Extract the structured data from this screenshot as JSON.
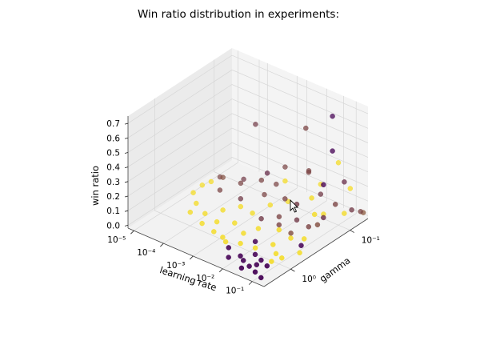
{
  "chart_data": {
    "type": "scatter",
    "projection": "3d",
    "title": "Win ratio distribution in experiments:",
    "xlabel": "learning rate",
    "ylabel": "gamma",
    "zlabel": "win ratio",
    "x_scale": "log",
    "y_scale": "log",
    "x_ticks": [
      {
        "value": -5,
        "label": "10⁻⁵"
      },
      {
        "value": -4,
        "label": "10⁻⁴"
      },
      {
        "value": -3,
        "label": "10⁻³"
      },
      {
        "value": -2,
        "label": "10⁻²"
      },
      {
        "value": -1,
        "label": "10⁻¹"
      }
    ],
    "y_ticks": [
      {
        "value": 0,
        "label": "10⁰"
      },
      {
        "value": -1,
        "label": "10⁻¹"
      }
    ],
    "z_ticks": [
      {
        "value": 0.0,
        "label": "0.0"
      },
      {
        "value": 0.1,
        "label": "0.1"
      },
      {
        "value": 0.2,
        "label": "0.2"
      },
      {
        "value": 0.3,
        "label": "0.3"
      },
      {
        "value": 0.4,
        "label": "0.4"
      },
      {
        "value": 0.5,
        "label": "0.5"
      },
      {
        "value": 0.6,
        "label": "0.6"
      },
      {
        "value": 0.7,
        "label": "0.7"
      }
    ],
    "xlim_log10": [
      -5.2,
      -0.6
    ],
    "ylim_log10": [
      0.45,
      -1.3
    ],
    "zlim": [
      -0.02,
      0.75
    ],
    "color_scale": {
      "low": "#440154",
      "high": "#fde725"
    },
    "points_description": "x = log10(learning rate), y = log10(gamma), z = win ratio, c = 0 (dark) .. 1 (yellow)",
    "points": [
      {
        "x": -3.7,
        "y": -0.95,
        "z": 0.45,
        "c": 0.25
      },
      {
        "x": -2.1,
        "y": -1.0,
        "z": 0.55,
        "c": 0.3
      },
      {
        "x": -1.7,
        "y": -1.25,
        "z": 0.6,
        "c": 0.0
      },
      {
        "x": -1.3,
        "y": -1.05,
        "z": 0.45,
        "c": 0.0
      },
      {
        "x": -2.8,
        "y": -0.7,
        "z": 0.26,
        "c": 0.2
      },
      {
        "x": -1.8,
        "y": -0.9,
        "z": 0.3,
        "c": 0.3
      },
      {
        "x": -1.2,
        "y": -0.85,
        "z": 0.28,
        "c": 0.0
      },
      {
        "x": -1.4,
        "y": -1.2,
        "z": 0.32,
        "c": 0.95
      },
      {
        "x": -1.0,
        "y": -1.1,
        "z": 0.25,
        "c": 0.2
      },
      {
        "x": -0.9,
        "y": -1.15,
        "z": 0.2,
        "c": 0.95
      },
      {
        "x": -2.0,
        "y": -0.6,
        "z": 0.18,
        "c": 0.3
      },
      {
        "x": -1.5,
        "y": -0.55,
        "z": 0.2,
        "c": 0.25
      },
      {
        "x": -3.2,
        "y": -0.8,
        "z": 0.15,
        "c": 0.3
      },
      {
        "x": -2.6,
        "y": -0.9,
        "z": 0.17,
        "c": 0.95
      },
      {
        "x": -2.9,
        "y": -1.05,
        "z": 0.2,
        "c": 0.3
      },
      {
        "x": -1.0,
        "y": -0.6,
        "z": 0.16,
        "c": 0.95
      },
      {
        "x": -0.8,
        "y": -0.55,
        "z": 0.12,
        "c": 0.35
      },
      {
        "x": -1.1,
        "y": -0.8,
        "z": 0.1,
        "c": 0.95
      },
      {
        "x": -0.9,
        "y": -0.7,
        "z": 0.12,
        "c": 0.2
      },
      {
        "x": -0.7,
        "y": -0.95,
        "z": 0.1,
        "c": 0.95
      },
      {
        "x": -0.75,
        "y": -1.1,
        "z": 0.08,
        "c": 0.25
      },
      {
        "x": -0.65,
        "y": -1.2,
        "z": 0.05,
        "c": 0.3
      },
      {
        "x": -0.7,
        "y": -1.27,
        "z": 0.02,
        "c": 0.4
      },
      {
        "x": -4.6,
        "y": -0.8,
        "z": 0.05,
        "c": 0.3
      },
      {
        "x": -4.5,
        "y": -0.6,
        "z": 0.08,
        "c": 0.95
      },
      {
        "x": -4.3,
        "y": -0.7,
        "z": 0.1,
        "c": 0.35
      },
      {
        "x": -4.1,
        "y": -0.55,
        "z": 0.07,
        "c": 0.3
      },
      {
        "x": -4.0,
        "y": -0.9,
        "z": 0.06,
        "c": 0.25
      },
      {
        "x": -3.8,
        "y": -0.75,
        "z": 0.09,
        "c": 0.3
      },
      {
        "x": -4.7,
        "y": -0.4,
        "z": 0.04,
        "c": 0.95
      },
      {
        "x": -4.4,
        "y": -0.3,
        "z": 0.02,
        "c": 0.95
      },
      {
        "x": -4.2,
        "y": -0.1,
        "z": 0.03,
        "c": 0.95
      },
      {
        "x": -3.9,
        "y": -0.2,
        "z": 0.02,
        "c": 0.95
      },
      {
        "x": -3.6,
        "y": -0.35,
        "z": 0.03,
        "c": 0.95
      },
      {
        "x": -3.4,
        "y": -0.15,
        "z": 0.02,
        "c": 0.95
      },
      {
        "x": -3.2,
        "y": 0.0,
        "z": 0.01,
        "c": 0.95
      },
      {
        "x": -3.0,
        "y": -0.25,
        "z": 0.02,
        "c": 0.95
      },
      {
        "x": -2.8,
        "y": 0.05,
        "z": 0.02,
        "c": 0.95
      },
      {
        "x": -3.5,
        "y": -0.6,
        "z": 0.05,
        "c": 0.25
      },
      {
        "x": -3.3,
        "y": -0.5,
        "z": 0.04,
        "c": 0.95
      },
      {
        "x": -3.1,
        "y": -0.8,
        "z": 0.06,
        "c": 0.3
      },
      {
        "x": -2.9,
        "y": -0.5,
        "z": 0.03,
        "c": 0.95
      },
      {
        "x": -2.7,
        "y": -0.7,
        "z": 0.05,
        "c": 0.95
      },
      {
        "x": -2.5,
        "y": -0.45,
        "z": 0.04,
        "c": 0.25
      },
      {
        "x": -2.4,
        "y": -0.85,
        "z": 0.06,
        "c": 0.95
      },
      {
        "x": -2.3,
        "y": -0.3,
        "z": 0.03,
        "c": 0.95
      },
      {
        "x": -2.2,
        "y": -0.6,
        "z": 0.04,
        "c": 0.3
      },
      {
        "x": -2.6,
        "y": 0.1,
        "z": 0.02,
        "c": 0.95
      },
      {
        "x": -2.4,
        "y": 0.15,
        "z": 0.01,
        "c": 0.0
      },
      {
        "x": -2.2,
        "y": 0.05,
        "z": 0.03,
        "c": 0.95
      },
      {
        "x": -2.0,
        "y": -0.1,
        "z": 0.02,
        "c": 0.0
      },
      {
        "x": -1.9,
        "y": 0.2,
        "z": 0.01,
        "c": 0.0
      },
      {
        "x": -1.8,
        "y": 0.0,
        "z": 0.02,
        "c": 0.95
      },
      {
        "x": -1.7,
        "y": 0.25,
        "z": 0.01,
        "c": 0.0
      },
      {
        "x": -1.6,
        "y": 0.1,
        "z": 0.02,
        "c": 0.0
      },
      {
        "x": -1.5,
        "y": -0.15,
        "z": 0.03,
        "c": 0.95
      },
      {
        "x": -1.4,
        "y": 0.3,
        "z": 0.01,
        "c": 0.0
      },
      {
        "x": -1.3,
        "y": 0.15,
        "z": 0.02,
        "c": 0.0
      },
      {
        "x": -1.2,
        "y": -0.05,
        "z": 0.02,
        "c": 0.95
      },
      {
        "x": -1.1,
        "y": 0.35,
        "z": 0.01,
        "c": 0.0
      },
      {
        "x": -1.0,
        "y": 0.2,
        "z": 0.02,
        "c": 0.0
      },
      {
        "x": -0.9,
        "y": 0.0,
        "z": 0.03,
        "c": 0.95
      },
      {
        "x": -0.85,
        "y": -0.3,
        "z": 0.04,
        "c": 0.0
      },
      {
        "x": -0.8,
        "y": 0.4,
        "z": 0.01,
        "c": 0.0
      },
      {
        "x": -1.9,
        "y": -0.45,
        "z": 0.05,
        "c": 0.3
      },
      {
        "x": -1.7,
        "y": -0.35,
        "z": 0.06,
        "c": 0.95
      },
      {
        "x": -1.6,
        "y": -0.6,
        "z": 0.07,
        "c": 0.25
      },
      {
        "x": -1.4,
        "y": -0.4,
        "z": 0.05,
        "c": 0.35
      },
      {
        "x": -1.2,
        "y": -0.3,
        "z": 0.06,
        "c": 0.95
      },
      {
        "x": -1.1,
        "y": -0.55,
        "z": 0.08,
        "c": 0.3
      },
      {
        "x": -0.95,
        "y": -0.4,
        "z": 0.05,
        "c": 0.95
      },
      {
        "x": -2.1,
        "y": 0.3,
        "z": 0.01,
        "c": 0.0
      },
      {
        "x": -1.5,
        "y": 0.38,
        "z": 0.01,
        "c": 0.0
      },
      {
        "x": -2.5,
        "y": -0.15,
        "z": 0.02,
        "c": 0.95
      },
      {
        "x": -3.7,
        "y": -0.05,
        "z": 0.01,
        "c": 0.95
      },
      {
        "x": -4.8,
        "y": -0.6,
        "z": 0.03,
        "c": 0.95
      },
      {
        "x": -3.0,
        "y": -0.95,
        "z": 0.1,
        "c": 0.3
      },
      {
        "x": -2.0,
        "y": -1.2,
        "z": 0.12,
        "c": 0.95
      },
      {
        "x": -1.6,
        "y": -1.0,
        "z": 0.14,
        "c": 0.25
      },
      {
        "x": -0.8,
        "y": -0.85,
        "z": 0.18,
        "c": 0.3
      },
      {
        "x": -1.3,
        "y": -0.7,
        "z": 0.22,
        "c": 0.95
      },
      {
        "x": -2.3,
        "y": -1.15,
        "z": 0.2,
        "c": 0.3
      },
      {
        "x": -1.05,
        "y": 0.1,
        "z": 0.02,
        "c": 0.95
      },
      {
        "x": -1.25,
        "y": 0.25,
        "z": 0.02,
        "c": 0.0
      },
      {
        "x": -0.7,
        "y": -0.2,
        "z": 0.03,
        "c": 0.95
      }
    ]
  }
}
